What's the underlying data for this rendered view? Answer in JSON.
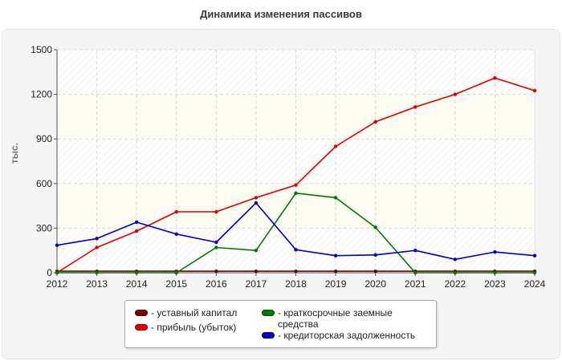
{
  "chart_data": {
    "type": "line",
    "title": "Динамика изменения пассивов",
    "xlabel": "",
    "ylabel": "тыс.",
    "categories": [
      "2012",
      "2013",
      "2014",
      "2015",
      "2016",
      "2017",
      "2018",
      "2019",
      "2020",
      "2021",
      "2022",
      "2023",
      "2024"
    ],
    "ylim": [
      0,
      1500
    ],
    "yticks": [
      "0",
      "300",
      "600",
      "900",
      "1200",
      "1500"
    ],
    "grid": true,
    "legend_position": "bottom",
    "series": [
      {
        "name": "- уставный капитал",
        "color": "#7a0000",
        "values": [
          10,
          10,
          10,
          10,
          10,
          10,
          10,
          10,
          10,
          10,
          10,
          10,
          10
        ]
      },
      {
        "name": "- прибыль (убыток)",
        "color": "#e00000",
        "values": [
          0,
          170,
          280,
          410,
          410,
          505,
          590,
          850,
          1015,
          1115,
          1200,
          1310,
          1225
        ]
      },
      {
        "name": "- краткосрочные заемные средства",
        "color": "#007800",
        "values": [
          0,
          0,
          0,
          0,
          170,
          150,
          535,
          505,
          305,
          0,
          0,
          0,
          0
        ]
      },
      {
        "name": "- кредиторская задолженность",
        "color": "#0000c8",
        "values": [
          185,
          230,
          340,
          260,
          205,
          470,
          155,
          115,
          120,
          150,
          90,
          140,
          115
        ]
      }
    ]
  }
}
